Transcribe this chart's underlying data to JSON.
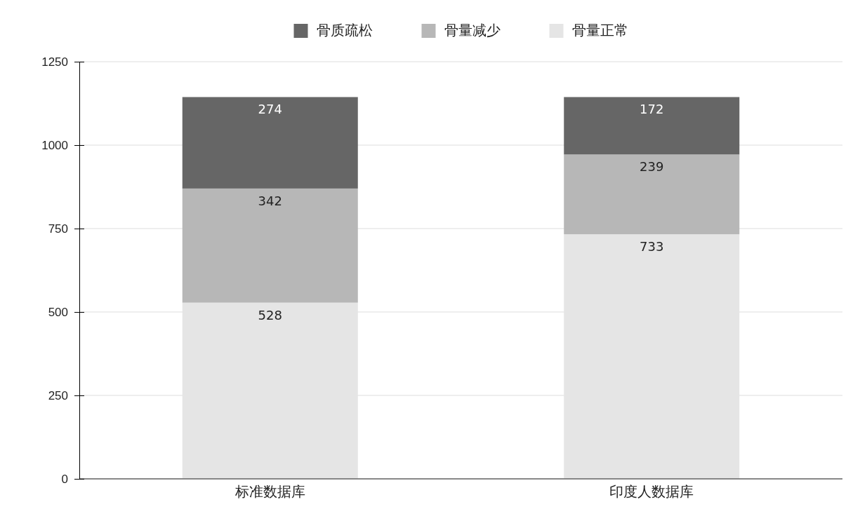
{
  "chart_data": {
    "type": "bar",
    "stacked": true,
    "categories": [
      "标准数据库",
      "印度人数据库"
    ],
    "series": [
      {
        "name": "骨量正常",
        "color": "#e5e5e5",
        "values": [
          528,
          733
        ]
      },
      {
        "name": "骨量减少",
        "color": "#b7b7b7",
        "values": [
          342,
          239
        ]
      },
      {
        "name": "骨质疏松",
        "color": "#666666",
        "values": [
          274,
          172
        ]
      }
    ],
    "ylim": [
      0,
      1250
    ],
    "yticks": [
      0,
      250,
      500,
      750,
      1000,
      1250
    ],
    "grid": "y",
    "legend": "top",
    "data_labels": true
  }
}
